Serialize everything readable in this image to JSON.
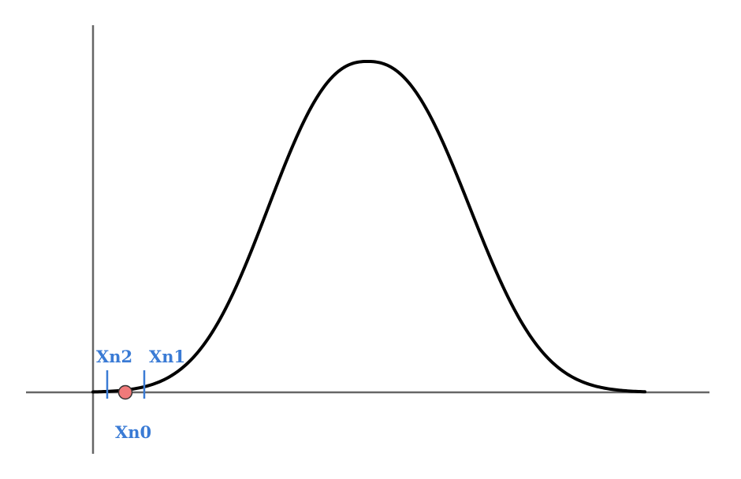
{
  "labels": {
    "xn2": "Xn2",
    "xn1": "Xn1",
    "xn0": "Xn0"
  },
  "colors": {
    "axis": "#666666",
    "curve": "#000000",
    "marker": "#3a7bd5",
    "point_fill": "#f07a7a",
    "point_stroke": "#333333"
  }
}
